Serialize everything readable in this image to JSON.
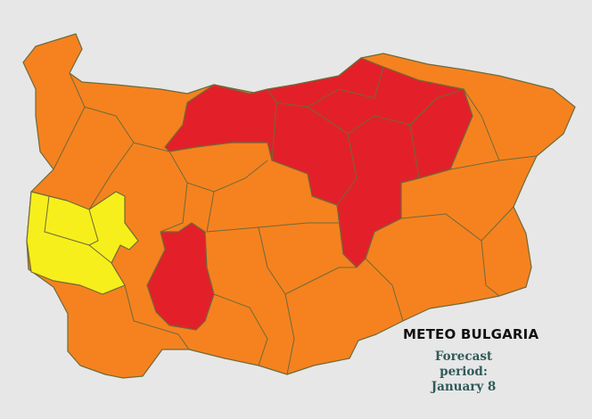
{
  "brand": "METEO BULGARIA",
  "forecast": {
    "label": "Forecast period:",
    "date": "January 8"
  },
  "colors": {
    "background": "#e7e7e7",
    "orange": "#f5821f",
    "red": "#e3202a",
    "yellow": "#f7ef1b",
    "border": "#6e6a3a"
  },
  "legend_levels": [
    "yellow",
    "orange",
    "red"
  ]
}
